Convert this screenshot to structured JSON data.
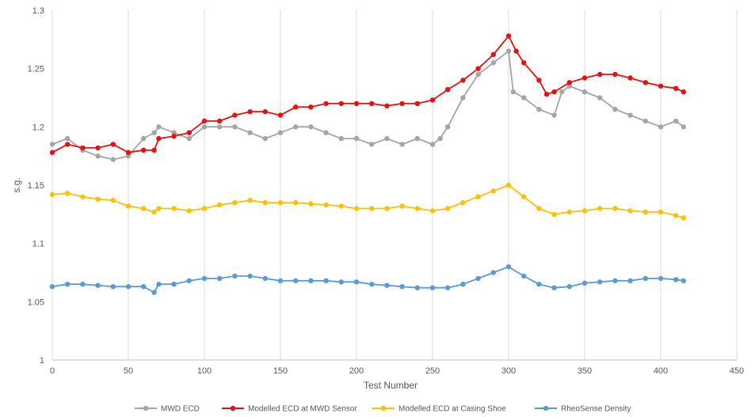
{
  "chart_data": {
    "type": "line",
    "title": "",
    "xlabel": "Test Number",
    "ylabel": "s.g.",
    "xlim": [
      0,
      450
    ],
    "ylim": [
      1,
      1.3
    ],
    "xticks": [
      "0",
      "50",
      "100",
      "150",
      "200",
      "250",
      "300",
      "350",
      "400",
      "450"
    ],
    "yticks": [
      "1",
      "1.05",
      "1.1",
      "1.15",
      "1.2",
      "1.25",
      "1.3"
    ],
    "grid": "vertical",
    "legend_position": "bottom",
    "series": [
      {
        "name": "MWD ECD",
        "color": "#a5a5a5",
        "marker": "circle",
        "x": [
          0,
          10,
          20,
          30,
          40,
          50,
          60,
          67,
          70,
          80,
          90,
          100,
          110,
          120,
          130,
          140,
          150,
          160,
          170,
          180,
          190,
          200,
          210,
          220,
          230,
          240,
          250,
          255,
          260,
          270,
          280,
          290,
          300,
          303,
          310,
          320,
          330,
          335,
          340,
          350,
          360,
          370,
          380,
          390,
          400,
          410,
          415
        ],
        "y": [
          1.185,
          1.19,
          1.18,
          1.175,
          1.172,
          1.175,
          1.19,
          1.195,
          1.2,
          1.195,
          1.19,
          1.2,
          1.2,
          1.2,
          1.195,
          1.19,
          1.195,
          1.2,
          1.2,
          1.195,
          1.19,
          1.19,
          1.185,
          1.19,
          1.185,
          1.19,
          1.185,
          1.19,
          1.2,
          1.225,
          1.245,
          1.255,
          1.265,
          1.23,
          1.225,
          1.215,
          1.21,
          1.23,
          1.235,
          1.23,
          1.225,
          1.215,
          1.21,
          1.205,
          1.2,
          1.205,
          1.2
        ]
      },
      {
        "name": "Modelled ECD at MWD Sensor",
        "color": "#e81010",
        "marker": "circle",
        "x": [
          0,
          10,
          20,
          30,
          40,
          50,
          60,
          67,
          70,
          80,
          90,
          100,
          110,
          120,
          130,
          140,
          150,
          160,
          170,
          180,
          190,
          200,
          210,
          220,
          230,
          240,
          250,
          260,
          270,
          280,
          290,
          300,
          305,
          310,
          320,
          325,
          330,
          340,
          350,
          360,
          370,
          380,
          390,
          400,
          410,
          415
        ],
        "y": [
          1.178,
          1.185,
          1.182,
          1.182,
          1.185,
          1.178,
          1.18,
          1.18,
          1.19,
          1.192,
          1.195,
          1.205,
          1.205,
          1.21,
          1.213,
          1.213,
          1.21,
          1.217,
          1.217,
          1.22,
          1.22,
          1.22,
          1.22,
          1.218,
          1.22,
          1.22,
          1.223,
          1.232,
          1.24,
          1.25,
          1.262,
          1.278,
          1.265,
          1.255,
          1.24,
          1.228,
          1.23,
          1.238,
          1.242,
          1.245,
          1.245,
          1.242,
          1.238,
          1.235,
          1.233,
          1.23
        ]
      },
      {
        "name": "Modelled ECD at Casing Shoe",
        "color": "#ffc000",
        "marker": "circle",
        "x": [
          0,
          10,
          20,
          30,
          40,
          50,
          60,
          67,
          70,
          80,
          90,
          100,
          110,
          120,
          130,
          140,
          150,
          160,
          170,
          180,
          190,
          200,
          210,
          220,
          230,
          240,
          250,
          260,
          270,
          280,
          290,
          300,
          310,
          320,
          330,
          340,
          350,
          360,
          370,
          380,
          390,
          400,
          410,
          415
        ],
        "y": [
          1.142,
          1.143,
          1.14,
          1.138,
          1.137,
          1.132,
          1.13,
          1.127,
          1.13,
          1.13,
          1.128,
          1.13,
          1.133,
          1.135,
          1.137,
          1.135,
          1.135,
          1.135,
          1.134,
          1.133,
          1.132,
          1.13,
          1.13,
          1.13,
          1.132,
          1.13,
          1.128,
          1.13,
          1.135,
          1.14,
          1.145,
          1.15,
          1.14,
          1.13,
          1.125,
          1.127,
          1.128,
          1.13,
          1.13,
          1.128,
          1.127,
          1.127,
          1.124,
          1.122
        ]
      },
      {
        "name": "RheoSense Density",
        "color": "#5b9bd5",
        "marker": "circle",
        "x": [
          0,
          10,
          20,
          30,
          40,
          50,
          60,
          67,
          70,
          80,
          90,
          100,
          110,
          120,
          130,
          140,
          150,
          160,
          170,
          180,
          190,
          200,
          210,
          220,
          230,
          240,
          250,
          260,
          270,
          280,
          290,
          300,
          310,
          320,
          330,
          340,
          350,
          360,
          370,
          380,
          390,
          400,
          410,
          415
        ],
        "y": [
          1.063,
          1.065,
          1.065,
          1.064,
          1.063,
          1.063,
          1.063,
          1.058,
          1.065,
          1.065,
          1.068,
          1.07,
          1.07,
          1.072,
          1.072,
          1.07,
          1.068,
          1.068,
          1.068,
          1.068,
          1.067,
          1.067,
          1.065,
          1.064,
          1.063,
          1.062,
          1.062,
          1.062,
          1.065,
          1.07,
          1.075,
          1.08,
          1.072,
          1.065,
          1.062,
          1.063,
          1.066,
          1.067,
          1.068,
          1.068,
          1.07,
          1.07,
          1.069,
          1.068
        ]
      }
    ]
  }
}
